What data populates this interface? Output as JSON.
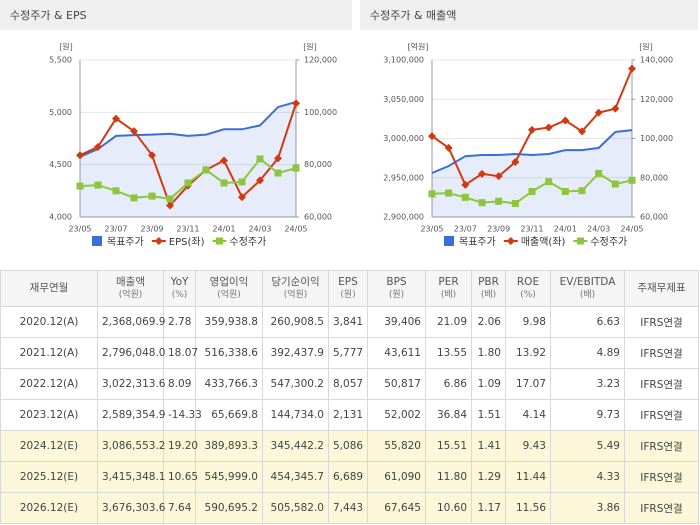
{
  "chart_data": [
    {
      "type": "line",
      "title": "수정주가 & EPS",
      "ylabel": "[원]",
      "y2label": "[원]",
      "categories": [
        "23/05",
        null,
        "23/07",
        null,
        "23/09",
        null,
        "23/11",
        null,
        "24/01",
        null,
        "24/03",
        null,
        "24/05"
      ],
      "ylim": [
        4000,
        5500
      ],
      "yticks": [
        {
          "value": 4000,
          "label": "4,000"
        },
        {
          "value": 4500,
          "label": "4,500"
        },
        {
          "value": 5000,
          "label": "5,000"
        },
        {
          "value": 5500,
          "label": "5,500"
        }
      ],
      "y2lim": [
        60000,
        120000
      ],
      "y2ticks": [
        {
          "value": 60000,
          "label": "60,000"
        },
        {
          "value": 80000,
          "label": "80,000"
        },
        {
          "value": 100000,
          "label": "100,000"
        },
        {
          "value": 120000,
          "label": "120,000"
        }
      ],
      "grid": true,
      "series": [
        {
          "name": "목표주가",
          "color": "#3a6fd8",
          "axis": "y2",
          "area": true,
          "marker": null,
          "values": [
            83000,
            86000,
            91000,
            91300,
            91500,
            91800,
            91000,
            91500,
            93500,
            93500,
            95000,
            102000,
            104000
          ]
        },
        {
          "name": "EPS(좌)",
          "color": "#d03a12",
          "marker": "diamond",
          "values": [
            4590,
            4670,
            4940,
            4820,
            4590,
            4110,
            4300,
            4450,
            4540,
            4190,
            4350,
            4560,
            5086
          ]
        },
        {
          "name": "수정주가",
          "color": "#8cc63e",
          "axis": "y2",
          "marker": "square",
          "values": [
            71800,
            72200,
            70000,
            67300,
            68000,
            66900,
            73000,
            78000,
            73000,
            73400,
            82200,
            76800,
            78700
          ]
        }
      ]
    },
    {
      "type": "line",
      "title": "수정주가 & 매출액",
      "ylabel": "[억원]",
      "y2label": "[원]",
      "categories": [
        "23/05",
        null,
        "23/07",
        null,
        "23/09",
        null,
        "23/11",
        null,
        "24/01",
        null,
        "24/03",
        null,
        "24/05"
      ],
      "ylim": [
        2900000,
        3100000
      ],
      "yticks": [
        {
          "value": 2900000,
          "label": "2,900,000"
        },
        {
          "value": 2950000,
          "label": "2,950,000"
        },
        {
          "value": 3000000,
          "label": "3,000,000"
        },
        {
          "value": 3050000,
          "label": "3,050,000"
        },
        {
          "value": 3100000,
          "label": "3,100,000"
        }
      ],
      "y2lim": [
        60000,
        140000
      ],
      "y2ticks": [
        {
          "value": 60000,
          "label": "60,000"
        },
        {
          "value": 80000,
          "label": "80,000"
        },
        {
          "value": 100000,
          "label": "100,000"
        },
        {
          "value": 120000,
          "label": "120,000"
        },
        {
          "value": 140000,
          "label": "140,000"
        }
      ],
      "grid": true,
      "series": [
        {
          "name": "목표주가",
          "color": "#3a6fd8",
          "axis": "y2",
          "area": true,
          "marker": null,
          "values": [
            82400,
            86000,
            91000,
            91600,
            91600,
            92100,
            91600,
            92100,
            94100,
            94100,
            95200,
            103300,
            104300
          ]
        },
        {
          "name": "매출액(좌)",
          "color": "#d03a12",
          "marker": "diamond",
          "values": [
            3003000,
            2988000,
            2941000,
            2955000,
            2952000,
            2970000,
            3011000,
            3014000,
            3023000,
            3009000,
            3033000,
            3038000,
            3089000
          ]
        },
        {
          "name": "수정주가",
          "color": "#8cc63e",
          "axis": "y2",
          "marker": "square",
          "values": [
            71800,
            72200,
            70000,
            67300,
            68000,
            66900,
            73000,
            78000,
            73000,
            73400,
            82200,
            76800,
            78700
          ]
        }
      ]
    }
  ],
  "table": {
    "columns": [
      {
        "name": "재무연월"
      },
      {
        "name": "매출액",
        "unit": "(억원)"
      },
      {
        "name": "YoY",
        "unit": "(%)"
      },
      {
        "name": "영업이익",
        "unit": "(억원)"
      },
      {
        "name": "당기순이익",
        "unit": "(억원)"
      },
      {
        "name": "EPS",
        "unit": "(원)"
      },
      {
        "name": "BPS",
        "unit": "(원)"
      },
      {
        "name": "PER",
        "unit": "(배)"
      },
      {
        "name": "PBR",
        "unit": "(배)"
      },
      {
        "name": "ROE",
        "unit": "(%)"
      },
      {
        "name": "EV/EBITDA",
        "unit": "(배)"
      },
      {
        "name": "주재무제표"
      }
    ],
    "rows": [
      [
        "2020.12(A)",
        "2,368,069.9",
        "2.78",
        "359,938.8",
        "260,908.5",
        "3,841",
        "39,406",
        "21.09",
        "2.06",
        "9.98",
        "6.63",
        "IFRS연결"
      ],
      [
        "2021.12(A)",
        "2,796,048.0",
        "18.07",
        "516,338.6",
        "392,437.9",
        "5,777",
        "43,611",
        "13.55",
        "1.80",
        "13.92",
        "4.89",
        "IFRS연결"
      ],
      [
        "2022.12(A)",
        "3,022,313.6",
        "8.09",
        "433,766.3",
        "547,300.2",
        "8,057",
        "50,817",
        "6.86",
        "1.09",
        "17.07",
        "3.23",
        "IFRS연결"
      ],
      [
        "2023.12(A)",
        "2,589,354.9",
        "-14.33",
        "65,669.8",
        "144,734.0",
        "2,131",
        "52,002",
        "36.84",
        "1.51",
        "4.14",
        "9.73",
        "IFRS연결"
      ],
      [
        "2024.12(E)",
        "3,086,553.2",
        "19.20",
        "389,893.3",
        "345,442.2",
        "5,086",
        "55,820",
        "15.51",
        "1.41",
        "9.43",
        "5.49",
        "IFRS연결"
      ],
      [
        "2025.12(E)",
        "3,415,348.1",
        "10.65",
        "545,999.0",
        "454,345.7",
        "6,689",
        "61,090",
        "11.80",
        "1.29",
        "11.44",
        "4.33",
        "IFRS연결"
      ],
      [
        "2026.12(E)",
        "3,676,303.6",
        "7.64",
        "590,695.2",
        "505,582.0",
        "7,443",
        "67,645",
        "10.60",
        "1.17",
        "11.56",
        "3.86",
        "IFRS연결"
      ]
    ]
  }
}
